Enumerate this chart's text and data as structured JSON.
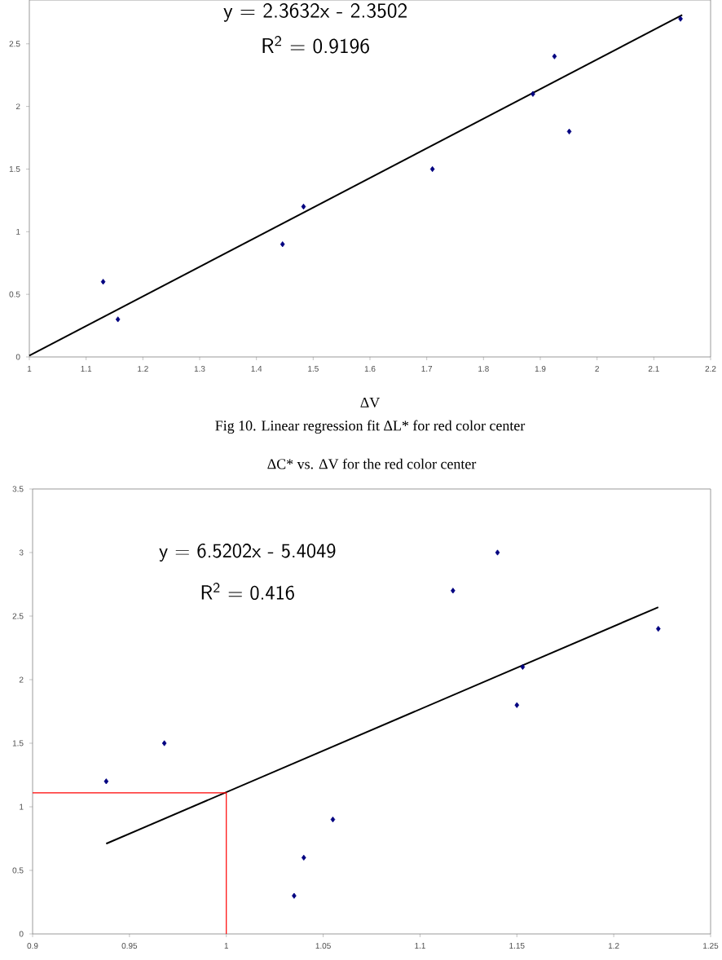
{
  "chart_data": [
    {
      "type": "scatter",
      "xlabel": "ΔV",
      "annotations": [
        "y = 2.3632x - 2.3502",
        "R$^{2}$ = 0.9196",
        "Fig 10. Linear regression fit ΔL* for red color center"
      ],
      "xlim": [
        1,
        2.2
      ],
      "xticks": [
        1,
        1.1,
        1.2,
        1.3,
        1.4,
        1.5,
        1.6,
        1.7,
        1.8,
        1.9,
        2,
        2.1,
        2.2
      ],
      "ylim": [
        0,
        2.85
      ],
      "yticks": [
        0,
        0.5,
        1,
        1.5,
        2,
        2.5
      ],
      "series": [
        {
          "marker": "diamond",
          "color": "#000080",
          "x": [
            1.13,
            1.156,
            1.446,
            1.483,
            1.71,
            1.887,
            1.925,
            1.951,
            2.147
          ],
          "values": [
            0.6,
            0.3,
            0.9,
            1.2,
            1.5,
            2.1,
            2.4,
            1.8,
            2.7
          ]
        },
        {
          "type": "line",
          "marker": "none",
          "color": "#000000",
          "x": [
            1,
            2.15
          ],
          "values": [
            0.01,
            2.73
          ]
        }
      ]
    },
    {
      "type": "scatter",
      "title": "ΔC* vs. ΔV for the red color center",
      "annotations": [
        "y = 6.5202x - 5.4049",
        "R$^{2}$ = 0.416"
      ],
      "xlim": [
        0.9,
        1.25
      ],
      "xticks": [
        0.9,
        0.95,
        1,
        1.05,
        1.1,
        1.15,
        1.2,
        1.25
      ],
      "ylim": [
        0,
        3.5
      ],
      "yticks": [
        0,
        0.5,
        1,
        1.5,
        2,
        2.5,
        3,
        3.5
      ],
      "series": [
        {
          "marker": "diamond",
          "color": "#000080",
          "x": [
            0.938,
            0.968,
            1.035,
            1.04,
            1.055,
            1.117,
            1.14,
            1.15,
            1.153,
            1.223
          ],
          "values": [
            1.2,
            1.5,
            0.3,
            0.6,
            0.9,
            2.7,
            3.0,
            1.8,
            2.1,
            2.4
          ]
        },
        {
          "type": "line",
          "marker": "none",
          "color": "#000000",
          "x": [
            0.938,
            1.223
          ],
          "values": [
            0.71,
            2.57
          ]
        },
        {
          "type": "line",
          "marker": "none",
          "color": "#ff0000",
          "x": [
            0.9,
            1,
            1
          ],
          "values": [
            1.11,
            1.11,
            0
          ]
        }
      ]
    }
  ]
}
